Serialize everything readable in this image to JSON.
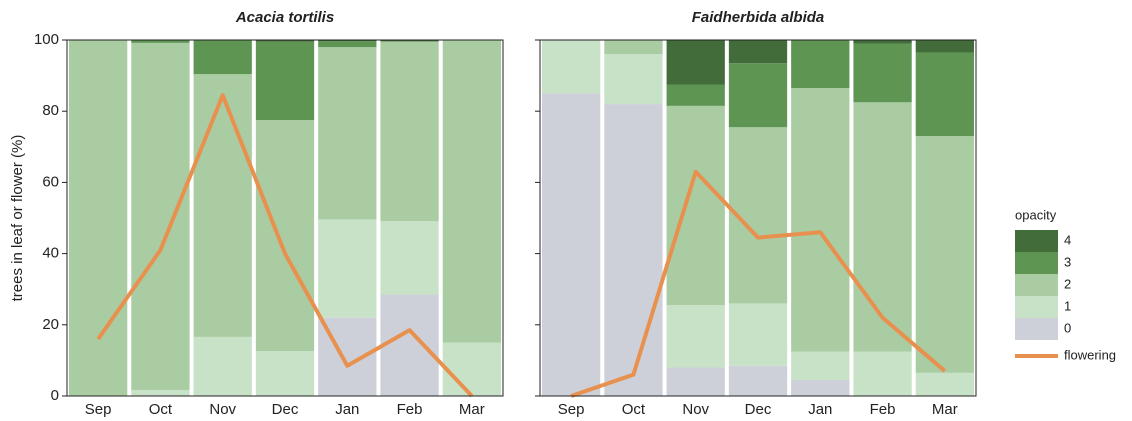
{
  "chart_data": [
    {
      "type": "bar",
      "stacked": true,
      "title": "Acacia tortilis",
      "ylabel": "trees in leaf or flower (%)",
      "categories": [
        "Sep",
        "Oct",
        "Nov",
        "Dec",
        "Jan",
        "Feb",
        "Mar"
      ],
      "ylim": [
        0,
        100
      ],
      "yticks": [
        0,
        20,
        40,
        60,
        80,
        100
      ],
      "ytick_labels": true,
      "legend_title": "opacity",
      "series": [
        {
          "name": "0",
          "color": "#cdd0d9",
          "values": [
            0,
            0,
            0,
            0,
            22,
            28.5,
            0
          ]
        },
        {
          "name": "1",
          "color": "#c8e2c8",
          "values": [
            0,
            1.7,
            16.6,
            12.6,
            27.6,
            20.6,
            15
          ]
        },
        {
          "name": "2",
          "color": "#a9cca3",
          "values": [
            100,
            97.5,
            73.8,
            64.9,
            48.4,
            50.5,
            85
          ]
        },
        {
          "name": "3",
          "color": "#5e9553",
          "values": [
            0,
            0.8,
            9.6,
            22,
            1.7,
            0,
            0
          ]
        },
        {
          "name": "4",
          "color": "#426d3b",
          "values": [
            0,
            0,
            0,
            0.5,
            0.3,
            0.4,
            0
          ]
        },
        {
          "name": "flowering",
          "type": "line",
          "color": "#e8914f",
          "values": [
            16,
            41,
            84.5,
            40,
            8.5,
            18.5,
            0
          ]
        }
      ]
    },
    {
      "type": "bar",
      "stacked": true,
      "title": "Faidherbida albida",
      "categories": [
        "Sep",
        "Oct",
        "Nov",
        "Dec",
        "Jan",
        "Feb",
        "Mar"
      ],
      "ylim": [
        0,
        100
      ],
      "yticks": [
        0,
        20,
        40,
        60,
        80,
        100
      ],
      "ytick_labels": false,
      "series": [
        {
          "name": "0",
          "color": "#cdd0d9",
          "values": [
            85,
            82,
            8,
            8.5,
            4.5,
            0,
            0
          ]
        },
        {
          "name": "1",
          "color": "#c8e2c8",
          "values": [
            15,
            14,
            17.5,
            17.5,
            8,
            12.5,
            6.5
          ]
        },
        {
          "name": "2",
          "color": "#a9cca3",
          "values": [
            0,
            4,
            56,
            49.5,
            74,
            70,
            66.5
          ]
        },
        {
          "name": "3",
          "color": "#5e9553",
          "values": [
            0,
            0,
            6,
            18,
            13.5,
            16.5,
            23.5
          ]
        },
        {
          "name": "4",
          "color": "#426d3b",
          "values": [
            0,
            0,
            12.5,
            6.5,
            0,
            1,
            3.5
          ]
        },
        {
          "name": "flowering",
          "type": "line",
          "color": "#e8914f",
          "values": [
            0,
            6,
            63,
            44.5,
            46,
            22,
            7
          ]
        }
      ]
    }
  ]
}
